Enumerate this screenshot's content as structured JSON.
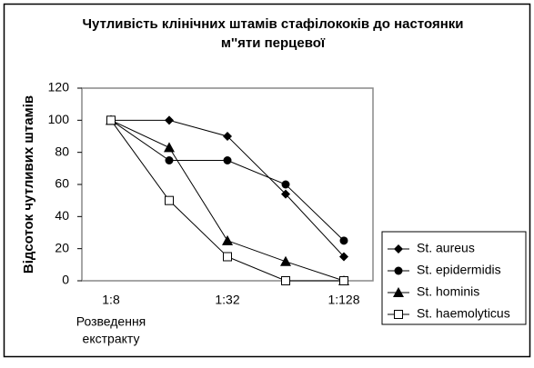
{
  "chart_data": {
    "type": "line",
    "title": [
      "Чутливість клінічних штамів стафілококів до настоянки",
      "м''яти перцевої"
    ],
    "y_label": "Відсоток чутливих штамів",
    "x_label": [
      "Розведення",
      "екстракту"
    ],
    "categories": [
      "1:8",
      null,
      "1:32",
      null,
      "1:128"
    ],
    "ylim": [
      0,
      120
    ],
    "yticks": [
      0,
      20,
      40,
      60,
      80,
      100,
      120
    ],
    "legend": "right",
    "series": [
      {
        "name": "St. aureus",
        "color": "#000000",
        "marker": "diamond",
        "values": [
          100,
          100,
          90,
          54,
          15
        ]
      },
      {
        "name": "St. epidermidis",
        "color": "#000000",
        "marker": "circle",
        "values": [
          100,
          75,
          75,
          60,
          25
        ]
      },
      {
        "name": "St. hominis",
        "color": "#000000",
        "marker": "triangle",
        "values": [
          100,
          83,
          25,
          12,
          0
        ]
      },
      {
        "name": "St. haemolyticus",
        "color": "#000000",
        "marker": "open-square",
        "values": [
          100,
          50,
          15,
          0,
          0
        ]
      }
    ]
  }
}
